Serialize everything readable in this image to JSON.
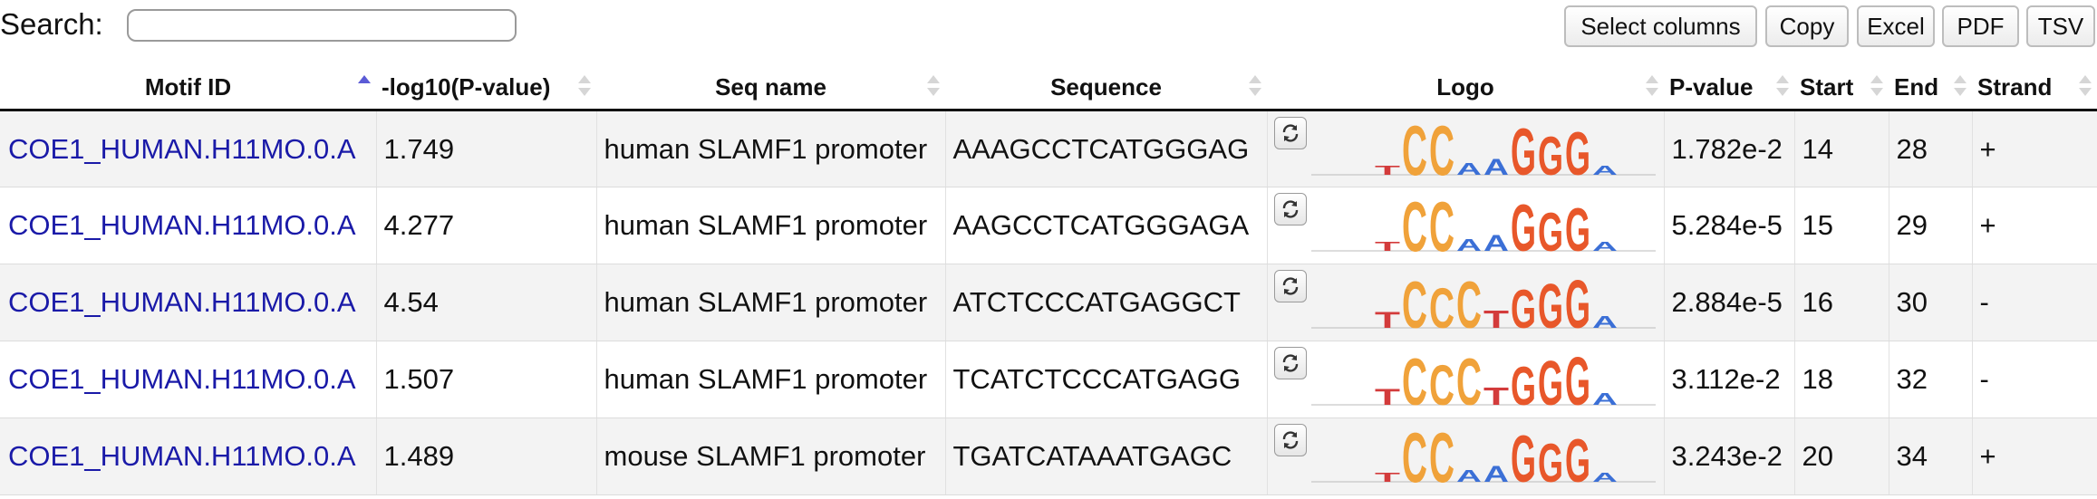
{
  "toolbar": {
    "search_label": "Search:",
    "search_value": "",
    "buttons": [
      "Select columns",
      "Copy",
      "Excel",
      "PDF",
      "TSV"
    ]
  },
  "table": {
    "columns": [
      "Motif ID",
      "-log10(P-value)",
      "Seq name",
      "Sequence",
      "Logo",
      "P-value",
      "Start",
      "End",
      "Strand"
    ],
    "sorted_column": "Motif ID",
    "sort_direction": "ascending",
    "rows": [
      {
        "motif_id": "COE1_HUMAN.H11MO.0.A",
        "neglog10p": "1.749",
        "seq_name": "human SLAMF1 promoter",
        "sequence": "AAAGCCTCATGGGAG",
        "logo": "refresh-icon + sequence-logo",
        "pvalue": "1.782e-2",
        "start": "14",
        "end": "28",
        "strand": "+"
      },
      {
        "motif_id": "COE1_HUMAN.H11MO.0.A",
        "neglog10p": "4.277",
        "seq_name": "human SLAMF1 promoter",
        "sequence": "AAGCCTCATGGGAGA",
        "logo": "refresh-icon + sequence-logo",
        "pvalue": "5.284e-5",
        "start": "15",
        "end": "29",
        "strand": "+"
      },
      {
        "motif_id": "COE1_HUMAN.H11MO.0.A",
        "neglog10p": "4.54",
        "seq_name": "human SLAMF1 promoter",
        "sequence": "ATCTCCCATGAGGCT",
        "logo": "refresh-icon + sequence-logo",
        "pvalue": "2.884e-5",
        "start": "16",
        "end": "30",
        "strand": "-"
      },
      {
        "motif_id": "COE1_HUMAN.H11MO.0.A",
        "neglog10p": "1.507",
        "seq_name": "human SLAMF1 promoter",
        "sequence": "TCATCTCCCATGAGG",
        "logo": "refresh-icon + sequence-logo",
        "pvalue": "3.112e-2",
        "start": "18",
        "end": "32",
        "strand": "-"
      },
      {
        "motif_id": "COE1_HUMAN.H11MO.0.A",
        "neglog10p": "1.489",
        "seq_name": "mouse SLAMF1 promoter",
        "sequence": "TGATCATAAATGAGC",
        "logo": "refresh-icon + sequence-logo",
        "pvalue": "3.243e-2",
        "start": "20",
        "end": "34",
        "strand": "+"
      }
    ]
  },
  "colors": {
    "link": "#1a1aa8",
    "row_stripe": "#f3f3f3",
    "logo_C": "#f0a23a",
    "logo_G": "#e8572a",
    "logo_T": "#d33b3b",
    "logo_A": "#3b6fd6"
  }
}
